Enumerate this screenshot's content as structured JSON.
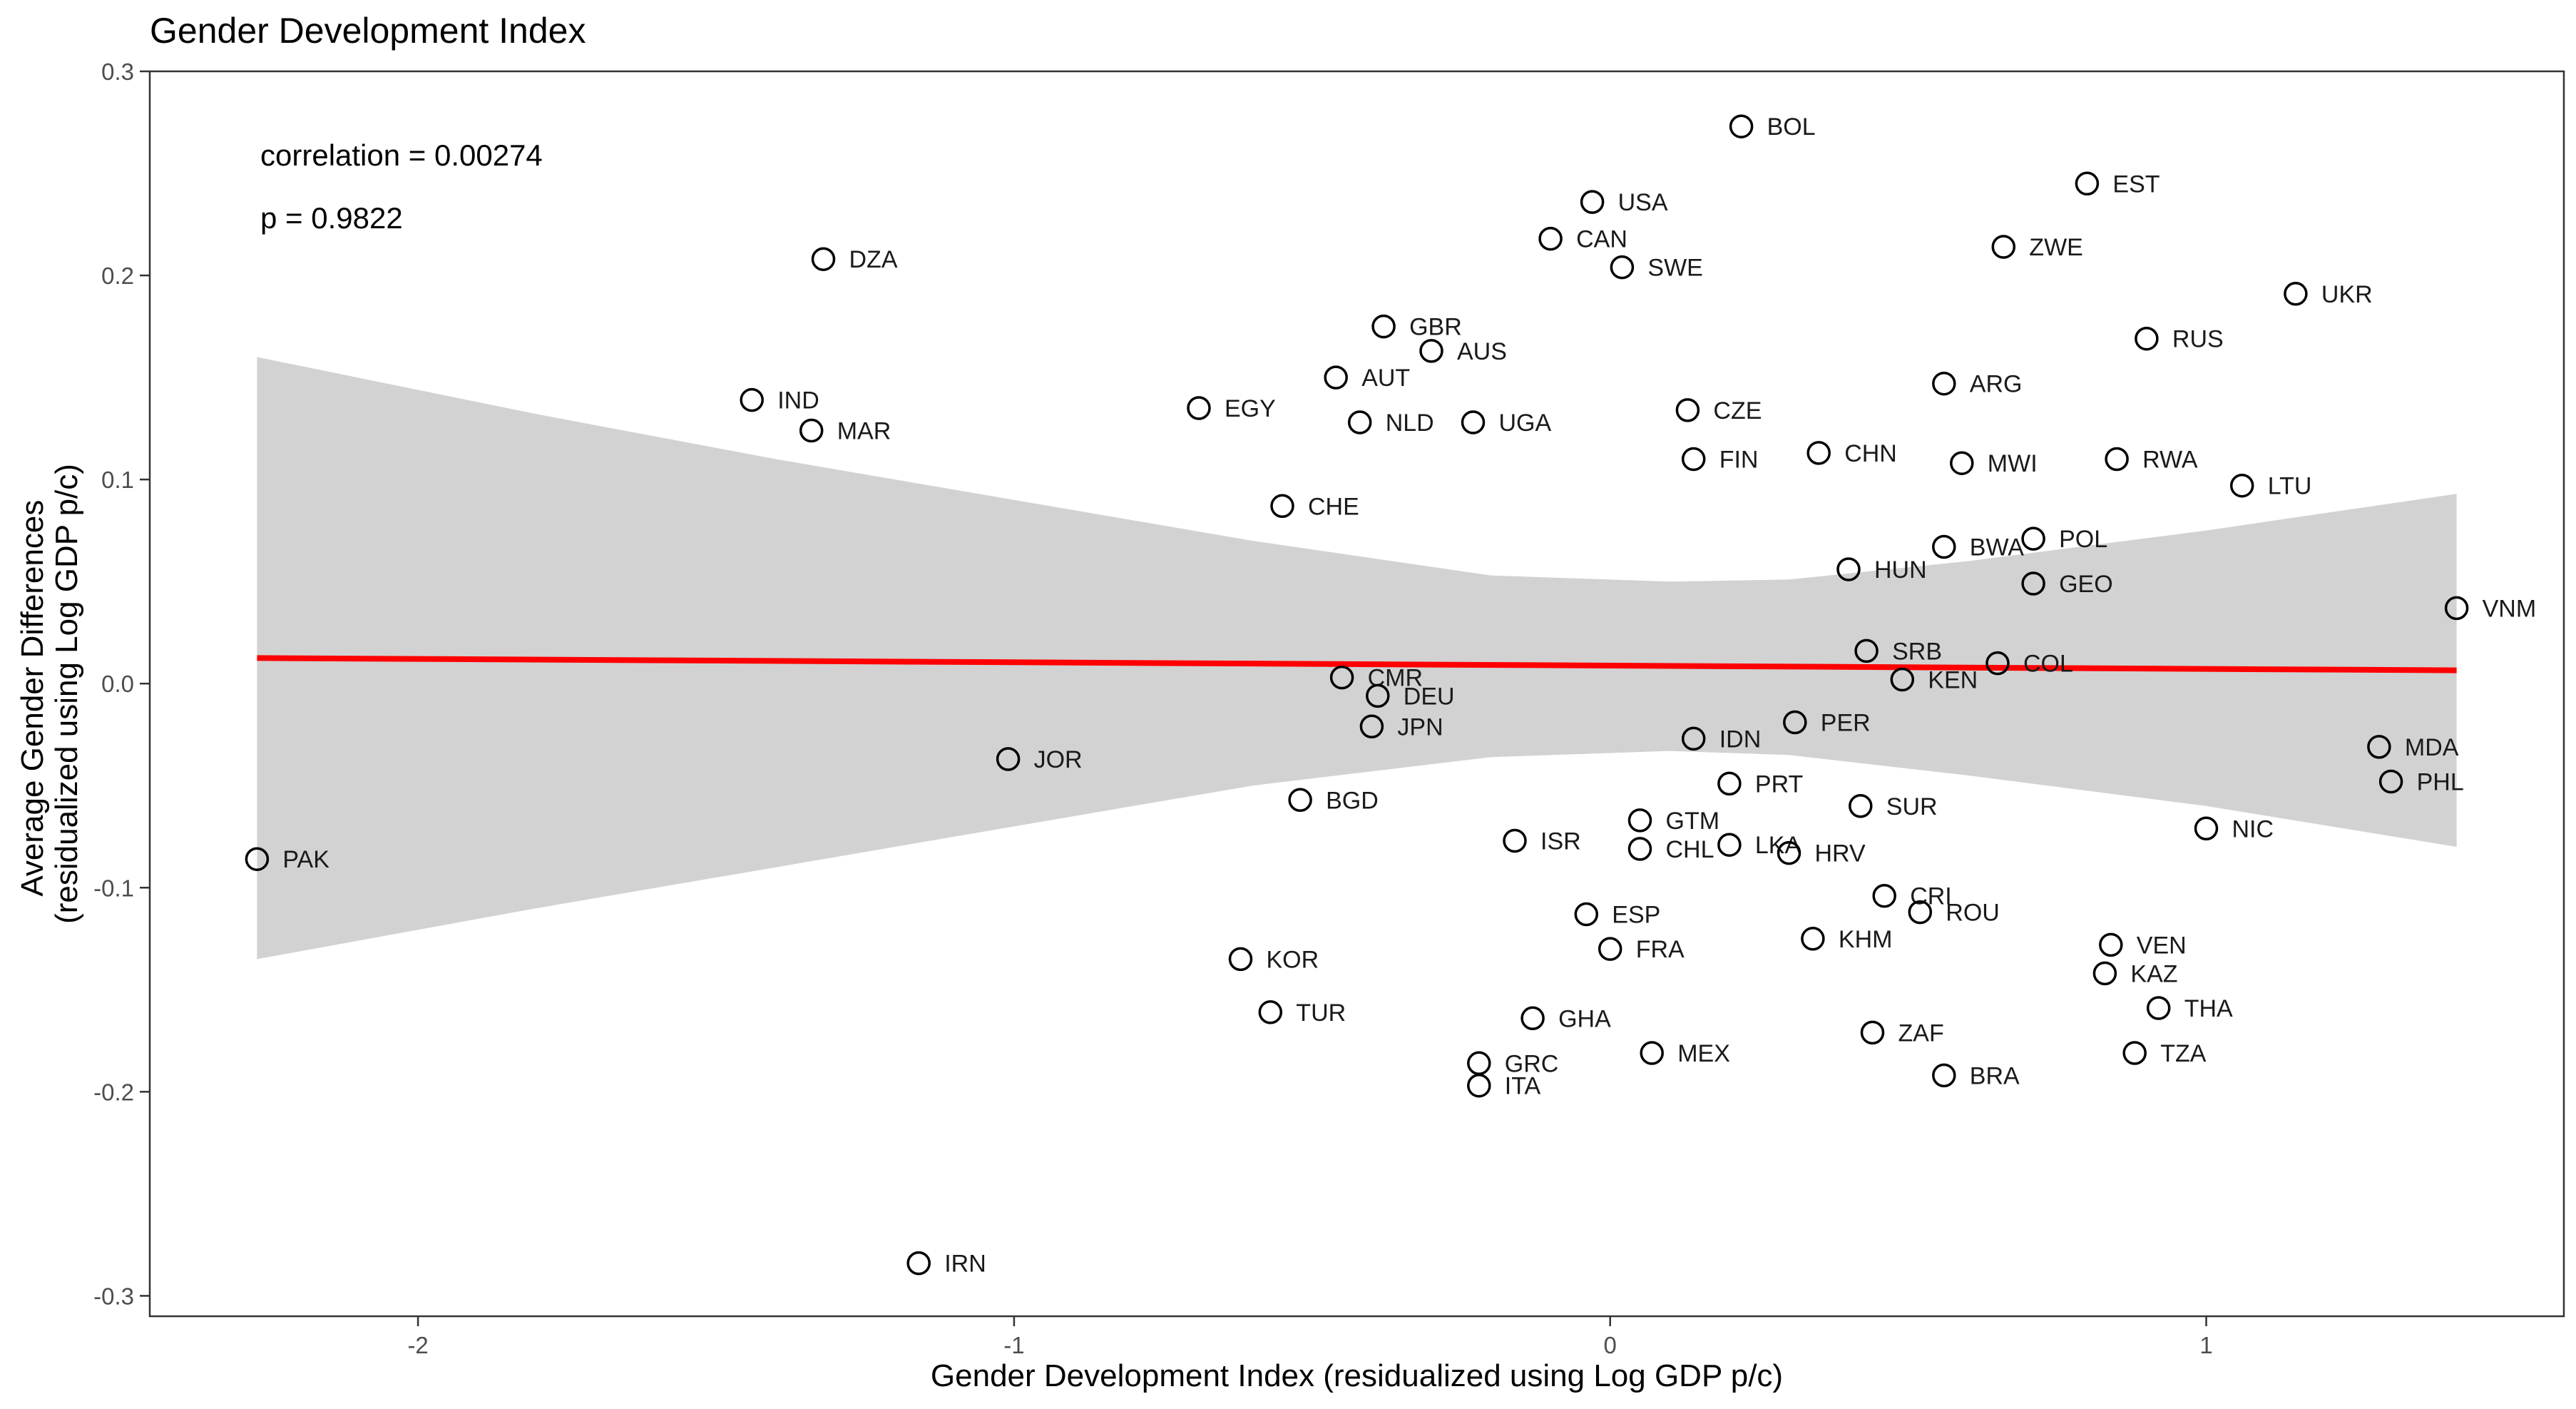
{
  "chart_data": {
    "type": "scatter",
    "title": "Gender Development Index",
    "xlabel": "Gender Development Index (residualized using Log GDP p/c)",
    "ylabel_lines": [
      "Average Gender Differences",
      "(residualized using Log GDP p/c)"
    ],
    "xlim": [
      -2.45,
      1.6
    ],
    "ylim": [
      -0.31,
      0.3
    ],
    "xticks": [
      -2,
      -1,
      0,
      1
    ],
    "xtick_labels": [
      "-2",
      "-1",
      "0",
      "1"
    ],
    "yticks": [
      -0.3,
      -0.2,
      -0.1,
      0.0,
      0.1,
      0.2,
      0.3
    ],
    "ytick_labels": [
      "-0.3",
      "-0.2",
      "-0.1",
      "0.0",
      "0.1",
      "0.2",
      "0.3"
    ],
    "annotations": [
      "correlation = 0.00274",
      "p = 0.9822"
    ],
    "grid": false,
    "colors": {
      "fit_line": "#ff0000",
      "confidence_band": "#d0d0d0",
      "point_stroke": "#000000"
    },
    "fit": {
      "x": [
        -2.27,
        1.42
      ],
      "y": [
        0.0125,
        0.0065
      ],
      "band_x": [
        -2.27,
        -1.8,
        -1.4,
        -1.0,
        -0.6,
        -0.2,
        0.1,
        0.3,
        0.6,
        1.0,
        1.42
      ],
      "band_upper": [
        0.16,
        0.132,
        0.11,
        0.09,
        0.07,
        0.053,
        0.05,
        0.051,
        0.06,
        0.075,
        0.093
      ],
      "band_lower": [
        -0.135,
        -0.11,
        -0.09,
        -0.07,
        -0.05,
        -0.036,
        -0.033,
        -0.035,
        -0.045,
        -0.06,
        -0.08
      ]
    },
    "points": [
      {
        "label": "BOL",
        "x": 0.22,
        "y": 0.273
      },
      {
        "label": "EST",
        "x": 0.8,
        "y": 0.245
      },
      {
        "label": "USA",
        "x": -0.03,
        "y": 0.236
      },
      {
        "label": "CAN",
        "x": -0.1,
        "y": 0.218
      },
      {
        "label": "ZWE",
        "x": 0.66,
        "y": 0.214
      },
      {
        "label": "DZA",
        "x": -1.32,
        "y": 0.208
      },
      {
        "label": "SWE",
        "x": 0.02,
        "y": 0.204
      },
      {
        "label": "UKR",
        "x": 1.15,
        "y": 0.191
      },
      {
        "label": "GBR",
        "x": -0.38,
        "y": 0.175
      },
      {
        "label": "RUS",
        "x": 0.9,
        "y": 0.169
      },
      {
        "label": "AUS",
        "x": -0.3,
        "y": 0.163
      },
      {
        "label": "AUT",
        "x": -0.46,
        "y": 0.15
      },
      {
        "label": "ARG",
        "x": 0.56,
        "y": 0.147
      },
      {
        "label": "IND",
        "x": -1.44,
        "y": 0.139
      },
      {
        "label": "EGY",
        "x": -0.69,
        "y": 0.135
      },
      {
        "label": "CZE",
        "x": 0.13,
        "y": 0.134
      },
      {
        "label": "NLD",
        "x": -0.42,
        "y": 0.128
      },
      {
        "label": "UGA",
        "x": -0.23,
        "y": 0.128
      },
      {
        "label": "MAR",
        "x": -1.34,
        "y": 0.124
      },
      {
        "label": "CHN",
        "x": 0.35,
        "y": 0.113
      },
      {
        "label": "FIN",
        "x": 0.14,
        "y": 0.11
      },
      {
        "label": "RWA",
        "x": 0.85,
        "y": 0.11
      },
      {
        "label": "MWI",
        "x": 0.59,
        "y": 0.108
      },
      {
        "label": "LTU",
        "x": 1.06,
        "y": 0.097
      },
      {
        "label": "CHE",
        "x": -0.55,
        "y": 0.087
      },
      {
        "label": "POL",
        "x": 0.71,
        "y": 0.071
      },
      {
        "label": "BWA",
        "x": 0.56,
        "y": 0.067
      },
      {
        "label": "HUN",
        "x": 0.4,
        "y": 0.056
      },
      {
        "label": "GEO",
        "x": 0.71,
        "y": 0.049
      },
      {
        "label": "VNM",
        "x": 1.42,
        "y": 0.037
      },
      {
        "label": "SRB",
        "x": 0.43,
        "y": 0.016
      },
      {
        "label": "COL",
        "x": 0.65,
        "y": 0.01
      },
      {
        "label": "CMR",
        "x": -0.45,
        "y": 0.003
      },
      {
        "label": "KEN",
        "x": 0.49,
        "y": 0.002
      },
      {
        "label": "DEU",
        "x": -0.39,
        "y": -0.006
      },
      {
        "label": "PER",
        "x": 0.31,
        "y": -0.019
      },
      {
        "label": "JPN",
        "x": -0.4,
        "y": -0.021
      },
      {
        "label": "IDN",
        "x": 0.14,
        "y": -0.027
      },
      {
        "label": "MDA",
        "x": 1.29,
        "y": -0.031
      },
      {
        "label": "JOR",
        "x": -1.01,
        "y": -0.037
      },
      {
        "label": "PRT",
        "x": 0.2,
        "y": -0.049
      },
      {
        "label": "PHL",
        "x": 1.31,
        "y": -0.048
      },
      {
        "label": "BGD",
        "x": -0.52,
        "y": -0.057
      },
      {
        "label": "SUR",
        "x": 0.42,
        "y": -0.06
      },
      {
        "label": "GTM",
        "x": 0.05,
        "y": -0.067
      },
      {
        "label": "NIC",
        "x": 1.0,
        "y": -0.071
      },
      {
        "label": "ISR",
        "x": -0.16,
        "y": -0.077
      },
      {
        "label": "LKA",
        "x": 0.2,
        "y": -0.079
      },
      {
        "label": "CHL",
        "x": 0.05,
        "y": -0.081
      },
      {
        "label": "HRV",
        "x": 0.3,
        "y": -0.083
      },
      {
        "label": "PAK",
        "x": -2.27,
        "y": -0.086
      },
      {
        "label": "CRI",
        "x": 0.46,
        "y": -0.104
      },
      {
        "label": "ROU",
        "x": 0.52,
        "y": -0.112
      },
      {
        "label": "ESP",
        "x": -0.04,
        "y": -0.113
      },
      {
        "label": "KHM",
        "x": 0.34,
        "y": -0.125
      },
      {
        "label": "VEN",
        "x": 0.84,
        "y": -0.128
      },
      {
        "label": "FRA",
        "x": 0.0,
        "y": -0.13
      },
      {
        "label": "KOR",
        "x": -0.62,
        "y": -0.135
      },
      {
        "label": "KAZ",
        "x": 0.83,
        "y": -0.142
      },
      {
        "label": "THA",
        "x": 0.92,
        "y": -0.159
      },
      {
        "label": "TUR",
        "x": -0.57,
        "y": -0.161
      },
      {
        "label": "GHA",
        "x": -0.13,
        "y": -0.164
      },
      {
        "label": "ZAF",
        "x": 0.44,
        "y": -0.171
      },
      {
        "label": "MEX",
        "x": 0.07,
        "y": -0.181
      },
      {
        "label": "TZA",
        "x": 0.88,
        "y": -0.181
      },
      {
        "label": "GRC",
        "x": -0.22,
        "y": -0.186
      },
      {
        "label": "BRA",
        "x": 0.56,
        "y": -0.192
      },
      {
        "label": "ITA",
        "x": -0.22,
        "y": -0.197
      },
      {
        "label": "IRN",
        "x": -1.16,
        "y": -0.284
      }
    ]
  }
}
